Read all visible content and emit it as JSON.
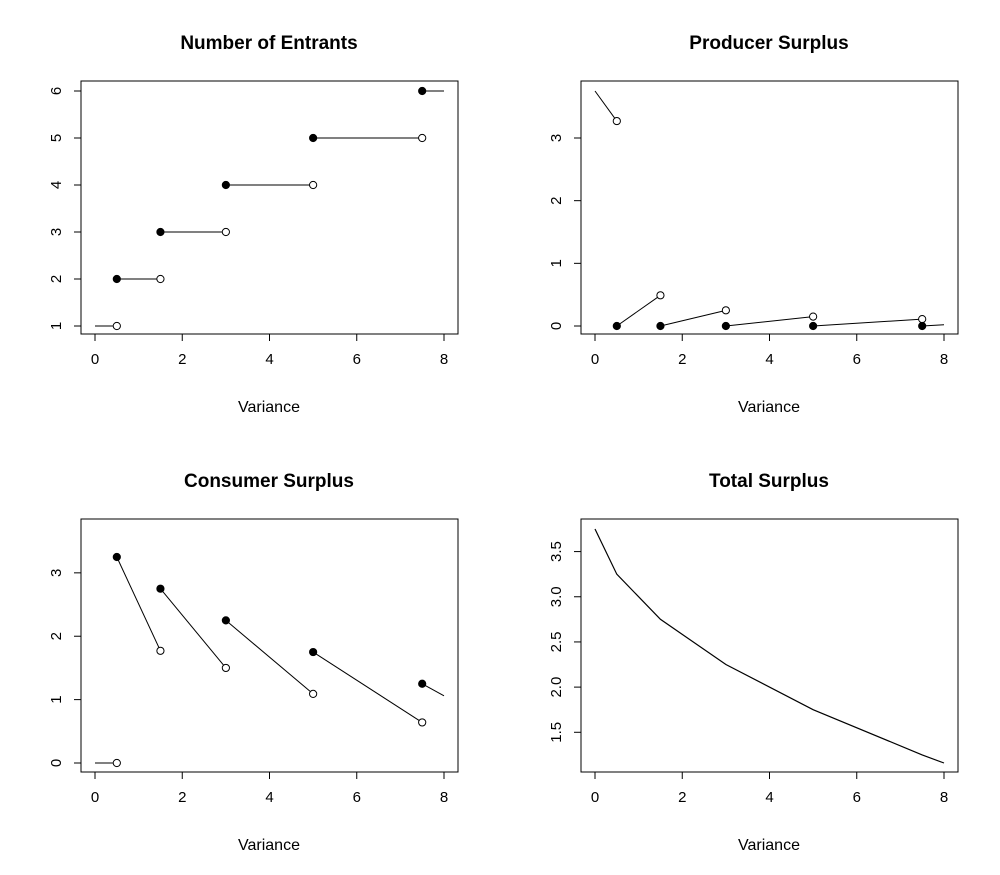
{
  "chart_data": [
    {
      "type": "line",
      "title": "Number of Entrants",
      "xlabel": "Variance",
      "ylabel": "",
      "xlim": [
        0,
        8
      ],
      "ylim": [
        1,
        6
      ],
      "xticks": [
        0,
        2,
        4,
        6,
        8
      ],
      "yticks": [
        1,
        2,
        3,
        4,
        5,
        6
      ],
      "ytick_rotated": true,
      "style": "step",
      "segments": [
        {
          "start": [
            0,
            1
          ],
          "end": [
            0.5,
            1
          ],
          "start_marker": "none",
          "end_marker": "open"
        },
        {
          "start": [
            0.5,
            2
          ],
          "end": [
            1.5,
            2
          ],
          "start_marker": "filled",
          "end_marker": "open"
        },
        {
          "start": [
            1.5,
            3
          ],
          "end": [
            3,
            3
          ],
          "start_marker": "filled",
          "end_marker": "open"
        },
        {
          "start": [
            3,
            4
          ],
          "end": [
            5,
            4
          ],
          "start_marker": "filled",
          "end_marker": "open"
        },
        {
          "start": [
            5,
            5
          ],
          "end": [
            7.5,
            5
          ],
          "start_marker": "filled",
          "end_marker": "open"
        },
        {
          "start": [
            7.5,
            6
          ],
          "end": [
            8,
            6
          ],
          "start_marker": "filled",
          "end_marker": "none"
        }
      ]
    },
    {
      "type": "line",
      "title": "Producer Surplus",
      "xlabel": "Variance",
      "ylabel": "",
      "xlim": [
        0,
        8
      ],
      "ylim": [
        0,
        3.75
      ],
      "xticks": [
        0,
        2,
        4,
        6,
        8
      ],
      "yticks": [
        0,
        1,
        2,
        3
      ],
      "ytick_rotated": true,
      "style": "segments",
      "segments": [
        {
          "start": [
            0,
            3.75
          ],
          "end": [
            0.5,
            3.27
          ],
          "start_marker": "none",
          "end_marker": "open"
        },
        {
          "start": [
            0.5,
            0
          ],
          "end": [
            1.5,
            0.49
          ],
          "start_marker": "filled",
          "end_marker": "open"
        },
        {
          "start": [
            1.5,
            0
          ],
          "end": [
            3,
            0.25
          ],
          "start_marker": "filled",
          "end_marker": "open"
        },
        {
          "start": [
            3,
            0
          ],
          "end": [
            5,
            0.15
          ],
          "start_marker": "filled",
          "end_marker": "open"
        },
        {
          "start": [
            5,
            0
          ],
          "end": [
            7.5,
            0.11
          ],
          "start_marker": "filled",
          "end_marker": "open"
        },
        {
          "start": [
            7.5,
            0
          ],
          "end": [
            8,
            0.02
          ],
          "start_marker": "filled",
          "end_marker": "none"
        }
      ]
    },
    {
      "type": "line",
      "title": "Consumer Surplus",
      "xlabel": "Variance",
      "ylabel": "",
      "xlim": [
        0,
        8
      ],
      "ylim": [
        0,
        3.25
      ],
      "xticks": [
        0,
        2,
        4,
        6,
        8
      ],
      "yticks": [
        0,
        1,
        2,
        3
      ],
      "ytick_rotated": true,
      "style": "segments",
      "segments": [
        {
          "start": [
            0,
            0
          ],
          "end": [
            0.5,
            0
          ],
          "start_marker": "none",
          "end_marker": "open"
        },
        {
          "start": [
            0.5,
            3.25
          ],
          "end": [
            1.5,
            1.77
          ],
          "start_marker": "filled",
          "end_marker": "open"
        },
        {
          "start": [
            1.5,
            2.75
          ],
          "end": [
            3,
            1.5
          ],
          "start_marker": "filled",
          "end_marker": "open"
        },
        {
          "start": [
            3,
            2.25
          ],
          "end": [
            5,
            1.09
          ],
          "start_marker": "filled",
          "end_marker": "open"
        },
        {
          "start": [
            5,
            1.75
          ],
          "end": [
            7.5,
            0.64
          ],
          "start_marker": "filled",
          "end_marker": "open"
        },
        {
          "start": [
            7.5,
            1.25
          ],
          "end": [
            8,
            1.06
          ],
          "start_marker": "filled",
          "end_marker": "none"
        }
      ]
    },
    {
      "type": "line",
      "title": "Total Surplus",
      "xlabel": "Variance",
      "ylabel": "",
      "xlim": [
        0,
        8
      ],
      "ylim": [
        1.16,
        3.75
      ],
      "xticks": [
        0,
        2,
        4,
        6,
        8
      ],
      "yticks": [
        1.5,
        2.0,
        2.5,
        3.0,
        3.5
      ],
      "ytick_labels": [
        "1.5",
        "2.0",
        "2.5",
        "3.0",
        "3.5"
      ],
      "ytick_rotated": true,
      "style": "polyline",
      "x": [
        0,
        0.5,
        1.5,
        3,
        5,
        7.5,
        8
      ],
      "y": [
        3.75,
        3.25,
        2.75,
        2.25,
        1.75,
        1.25,
        1.16
      ]
    }
  ]
}
